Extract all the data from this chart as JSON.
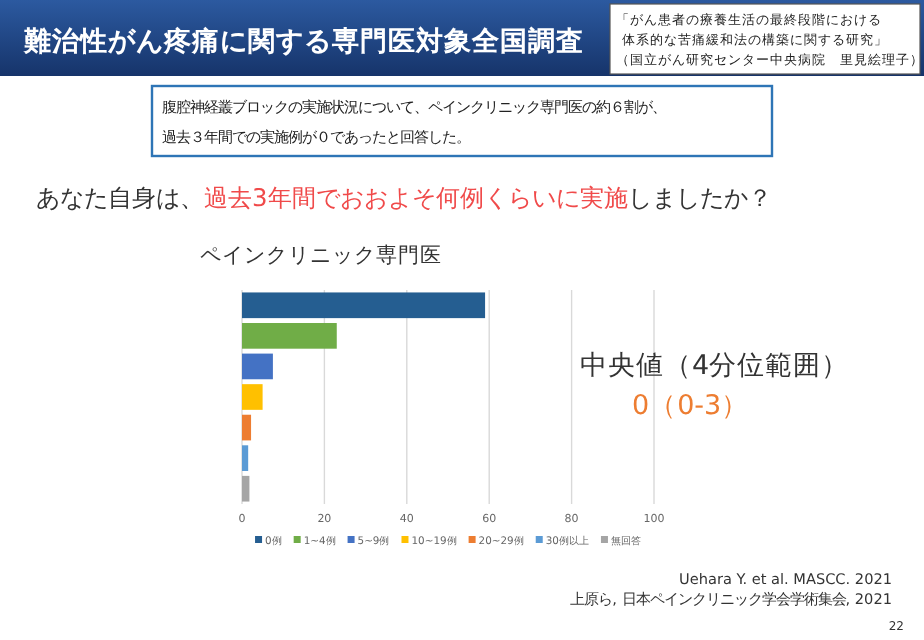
{
  "chart_data": {
    "type": "bar",
    "orientation": "horizontal",
    "title": "難治性がん疼痛に関する専門医対象全国調査",
    "subtitle": "ペインクリニック専門医",
    "categories": [
      null,
      null,
      null,
      null,
      null,
      null,
      null
    ],
    "series": [
      {
        "name": "0例",
        "color": "#255e91",
        "values": [
          59,
          null,
          null,
          null,
          null,
          null,
          null
        ]
      },
      {
        "name": "1~4例",
        "color": "#70ad47",
        "values": [
          null,
          23,
          null,
          null,
          null,
          null,
          null
        ]
      },
      {
        "name": "5~9例",
        "color": "#4472c4",
        "values": [
          null,
          null,
          7.5,
          null,
          null,
          null,
          null
        ]
      },
      {
        "name": "10~19例",
        "color": "#ffc000",
        "values": [
          null,
          null,
          null,
          5,
          null,
          null,
          null
        ]
      },
      {
        "name": "20~29例",
        "color": "#ed7d31",
        "values": [
          null,
          null,
          null,
          null,
          2.2,
          null,
          null
        ]
      },
      {
        "name": "30例以上",
        "color": "#5b9bd5",
        "values": [
          null,
          null,
          null,
          null,
          null,
          1.5,
          null
        ]
      },
      {
        "name": "無回答",
        "color": "#a5a5a5",
        "values": [
          null,
          null,
          null,
          null,
          null,
          null,
          1.8
        ]
      }
    ],
    "xlim": [
      0,
      100
    ],
    "xticks": [
      0,
      20,
      40,
      60,
      80,
      100
    ],
    "grid": "x",
    "legend": "bottom",
    "tick_labels": "x",
    "annotations": [
      "「がん患者の療養生活の最終段階における",
      "体系的な苦痛緩和法の構築に関する研究」",
      "（国立がん研究センター中央病院　里見絵理子）",
      "腹腔神経叢ブロックの実施状況について、ペインクリニック専門医の約６割が、",
      "過去３年間での実施例が０であったと回答した。",
      "あなた自身は、",
      "過去3年間でおおよそ何例くらいに実施",
      "しましたか？",
      "中央値（4分位範囲）",
      "0（0-3）",
      "Uehara Y. et al. MASCC. 2021",
      "上原ら, 日本ペインクリニック学会学術集会, 2021",
      "22"
    ]
  }
}
